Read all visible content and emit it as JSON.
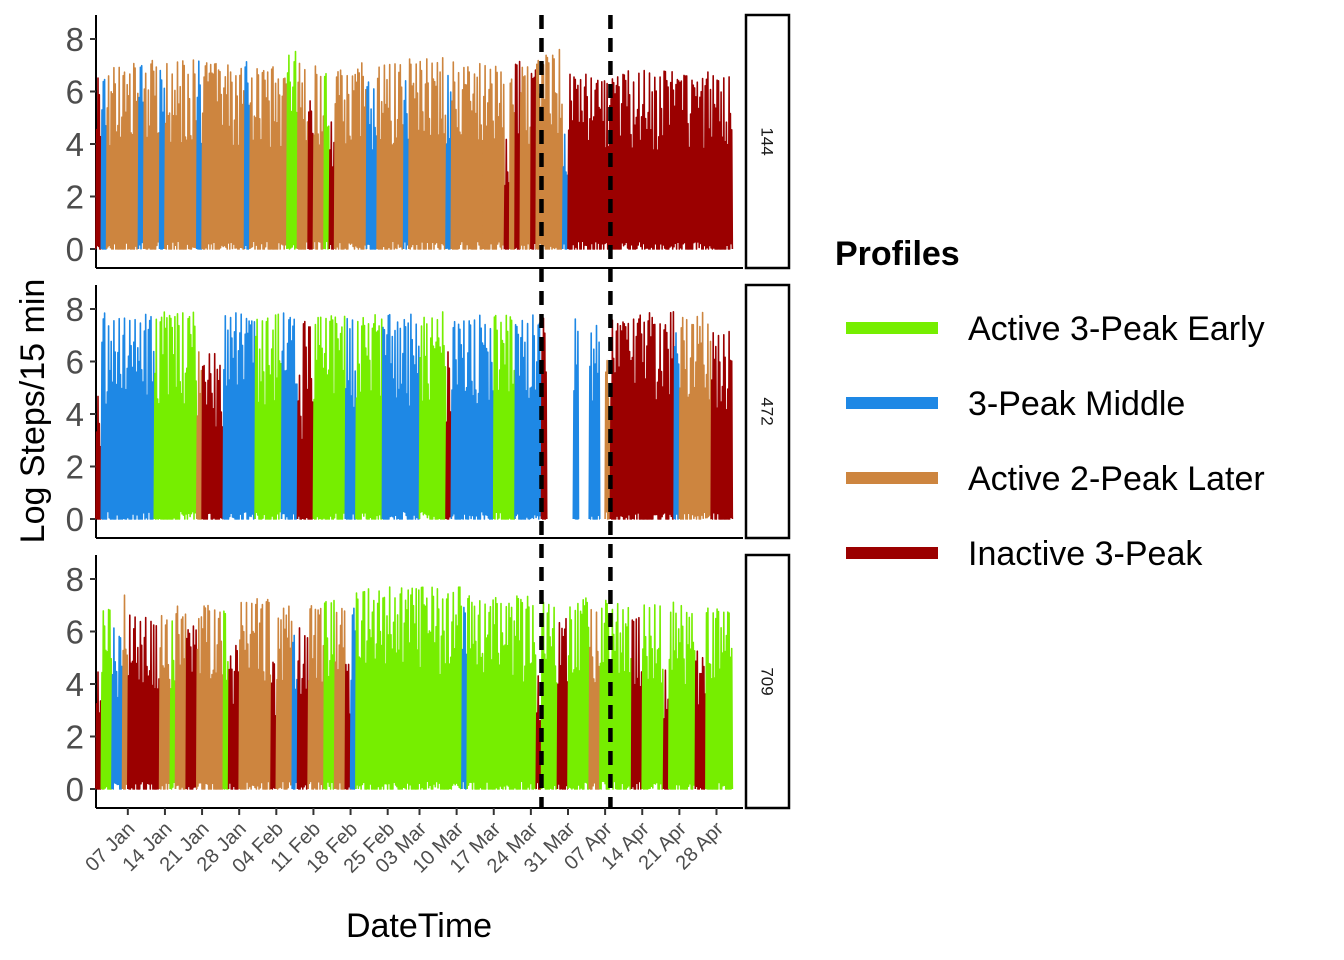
{
  "chart_data": {
    "type": "line",
    "xlabel": "DateTime",
    "ylabel": "Log Steps/15 min",
    "ylim": [
      0,
      8
    ],
    "y_ticks": [
      "0",
      "2",
      "4",
      "6",
      "8"
    ],
    "x_range": [
      "2025-01-01",
      "2025-05-03"
    ],
    "x_ticks": [
      {
        "date": "2025-01-07",
        "label": "07 Jan"
      },
      {
        "date": "2025-01-14",
        "label": "14 Jan"
      },
      {
        "date": "2025-01-21",
        "label": "21 Jan"
      },
      {
        "date": "2025-01-28",
        "label": "28 Jan"
      },
      {
        "date": "2025-02-04",
        "label": "04 Feb"
      },
      {
        "date": "2025-02-11",
        "label": "11 Feb"
      },
      {
        "date": "2025-02-18",
        "label": "18 Feb"
      },
      {
        "date": "2025-02-25",
        "label": "25 Feb"
      },
      {
        "date": "2025-03-03",
        "label": "03 Mar"
      },
      {
        "date": "2025-03-10",
        "label": "10 Mar"
      },
      {
        "date": "2025-03-17",
        "label": "17 Mar"
      },
      {
        "date": "2025-03-24",
        "label": "24 Mar"
      },
      {
        "date": "2025-03-31",
        "label": "31 Mar"
      },
      {
        "date": "2025-04-07",
        "label": "07 Apr"
      },
      {
        "date": "2025-04-14",
        "label": "14 Apr"
      },
      {
        "date": "2025-04-21",
        "label": "21 Apr"
      },
      {
        "date": "2025-04-28",
        "label": "28 Apr"
      }
    ],
    "vlines": [
      "2025-03-26",
      "2025-04-08"
    ],
    "legend": {
      "title": "Profiles",
      "position": "right",
      "entries": [
        {
          "label": "Active 3-Peak Early",
          "color": "#76EE00"
        },
        {
          "label": "3-Peak Middle",
          "color": "#1E88E5"
        },
        {
          "label": "Active 2-Peak Later",
          "color": "#CD853F"
        },
        {
          "label": "Inactive 3-Peak",
          "color": "#9B0000"
        }
      ]
    },
    "grid": false,
    "panels": [
      {
        "strip_label": "144",
        "segments": [
          {
            "start": "2025-01-01",
            "end": "2025-01-02",
            "profile": "Inactive 3-Peak",
            "peak": 6.9
          },
          {
            "start": "2025-01-02",
            "end": "2025-01-03",
            "profile": "3-Peak Middle",
            "peak": 6.8
          },
          {
            "start": "2025-01-03",
            "end": "2025-01-09",
            "profile": "Active 2-Peak Later",
            "peak": 7.1
          },
          {
            "start": "2025-01-09",
            "end": "2025-01-10",
            "profile": "3-Peak Middle",
            "peak": 7.0
          },
          {
            "start": "2025-01-10",
            "end": "2025-01-13",
            "profile": "Active 2-Peak Later",
            "peak": 7.2
          },
          {
            "start": "2025-01-13",
            "end": "2025-01-14",
            "profile": "3-Peak Middle",
            "peak": 6.9
          },
          {
            "start": "2025-01-14",
            "end": "2025-01-20",
            "profile": "Active 2-Peak Later",
            "peak": 7.2
          },
          {
            "start": "2025-01-20",
            "end": "2025-01-21",
            "profile": "3-Peak Middle",
            "peak": 7.3
          },
          {
            "start": "2025-01-21",
            "end": "2025-01-29",
            "profile": "Active 2-Peak Later",
            "peak": 7.1
          },
          {
            "start": "2025-01-29",
            "end": "2025-01-30",
            "profile": "3-Peak Middle",
            "peak": 7.2
          },
          {
            "start": "2025-01-30",
            "end": "2025-02-06",
            "profile": "Active 2-Peak Later",
            "peak": 7.0
          },
          {
            "start": "2025-02-06",
            "end": "2025-02-08",
            "profile": "Active 3-Peak Early",
            "peak": 7.6
          },
          {
            "start": "2025-02-08",
            "end": "2025-02-10",
            "profile": "Active 2-Peak Later",
            "peak": 7.3
          },
          {
            "start": "2025-02-10",
            "end": "2025-02-11",
            "profile": "Inactive 3-Peak",
            "peak": 6.0
          },
          {
            "start": "2025-02-11",
            "end": "2025-02-13",
            "profile": "Active 2-Peak Later",
            "peak": 7.1
          },
          {
            "start": "2025-02-13",
            "end": "2025-02-14",
            "profile": "Active 3-Peak Early",
            "peak": 7.0
          },
          {
            "start": "2025-02-14",
            "end": "2025-02-15",
            "profile": "Inactive 3-Peak",
            "peak": 5.0
          },
          {
            "start": "2025-02-15",
            "end": "2025-02-21",
            "profile": "Active 2-Peak Later",
            "peak": 7.1
          },
          {
            "start": "2025-02-21",
            "end": "2025-02-23",
            "profile": "3-Peak Middle",
            "peak": 6.6
          },
          {
            "start": "2025-02-23",
            "end": "2025-02-28",
            "profile": "Active 2-Peak Later",
            "peak": 7.1
          },
          {
            "start": "2025-02-28",
            "end": "2025-03-01",
            "profile": "3-Peak Middle",
            "peak": 6.5
          },
          {
            "start": "2025-03-01",
            "end": "2025-03-08",
            "profile": "Active 2-Peak Later",
            "peak": 7.3
          },
          {
            "start": "2025-03-08",
            "end": "2025-03-09",
            "profile": "3-Peak Middle",
            "peak": 7.0
          },
          {
            "start": "2025-03-09",
            "end": "2025-03-15",
            "profile": "Active 2-Peak Later",
            "peak": 7.2
          },
          {
            "start": "2025-03-15",
            "end": "2025-03-19",
            "profile": "Active 2-Peak Later",
            "peak": 7.0
          },
          {
            "start": "2025-03-19",
            "end": "2025-03-20",
            "profile": "Inactive 3-Peak",
            "peak": 4.2
          },
          {
            "start": "2025-03-20",
            "end": "2025-03-21",
            "profile": "Active 2-Peak Later",
            "peak": 7.0
          },
          {
            "start": "2025-03-21",
            "end": "2025-03-22",
            "profile": "Inactive 3-Peak",
            "peak": 7.3
          },
          {
            "start": "2025-03-22",
            "end": "2025-03-24",
            "profile": "Active 2-Peak Later",
            "peak": 7.2
          },
          {
            "start": "2025-03-24",
            "end": "2025-03-25",
            "profile": "Inactive 3-Peak",
            "peak": 6.9
          },
          {
            "start": "2025-03-25",
            "end": "2025-03-30",
            "profile": "Active 2-Peak Later",
            "peak": 7.6
          },
          {
            "start": "2025-03-30",
            "end": "2025-03-31",
            "profile": "3-Peak Middle",
            "peak": 4.7
          },
          {
            "start": "2025-03-31",
            "end": "2025-05-01",
            "profile": "Inactive 3-Peak",
            "peak": 6.8
          }
        ]
      },
      {
        "strip_label": "472",
        "segments": [
          {
            "start": "2025-01-01",
            "end": "2025-01-02",
            "profile": "Inactive 3-Peak",
            "peak": 4.8
          },
          {
            "start": "2025-01-02",
            "end": "2025-01-12",
            "profile": "3-Peak Middle",
            "peak": 7.9
          },
          {
            "start": "2025-01-12",
            "end": "2025-01-20",
            "profile": "Active 3-Peak Early",
            "peak": 7.9
          },
          {
            "start": "2025-01-20",
            "end": "2025-01-21",
            "profile": "Active 2-Peak Later",
            "peak": 6.9
          },
          {
            "start": "2025-01-21",
            "end": "2025-01-25",
            "profile": "Inactive 3-Peak",
            "peak": 6.3
          },
          {
            "start": "2025-01-25",
            "end": "2025-01-31",
            "profile": "3-Peak Middle",
            "peak": 7.9
          },
          {
            "start": "2025-01-31",
            "end": "2025-02-05",
            "profile": "Active 3-Peak Early",
            "peak": 7.8
          },
          {
            "start": "2025-02-05",
            "end": "2025-02-08",
            "profile": "3-Peak Middle",
            "peak": 7.9
          },
          {
            "start": "2025-02-08",
            "end": "2025-02-09",
            "profile": "Inactive 3-Peak",
            "peak": 5.5
          },
          {
            "start": "2025-02-09",
            "end": "2025-02-11",
            "profile": "Inactive 3-Peak",
            "peak": 7.9
          },
          {
            "start": "2025-02-11",
            "end": "2025-02-17",
            "profile": "Active 3-Peak Early",
            "peak": 7.8
          },
          {
            "start": "2025-02-17",
            "end": "2025-02-19",
            "profile": "3-Peak Middle",
            "peak": 7.7
          },
          {
            "start": "2025-02-19",
            "end": "2025-02-24",
            "profile": "Active 3-Peak Early",
            "peak": 7.8
          },
          {
            "start": "2025-02-24",
            "end": "2025-03-03",
            "profile": "3-Peak Middle",
            "peak": 7.8
          },
          {
            "start": "2025-03-03",
            "end": "2025-03-08",
            "profile": "Active 3-Peak Early",
            "peak": 7.9
          },
          {
            "start": "2025-03-08",
            "end": "2025-03-09",
            "profile": "Inactive 3-Peak",
            "peak": 6.4
          },
          {
            "start": "2025-03-09",
            "end": "2025-03-17",
            "profile": "3-Peak Middle",
            "peak": 7.8
          },
          {
            "start": "2025-03-17",
            "end": "2025-03-21",
            "profile": "Active 3-Peak Early",
            "peak": 7.9
          },
          {
            "start": "2025-03-21",
            "end": "2025-03-26",
            "profile": "3-Peak Middle",
            "peak": 7.8
          },
          {
            "start": "2025-03-26",
            "end": "2025-03-27",
            "profile": "Inactive 3-Peak",
            "peak": 7.9
          },
          {
            "start": "2025-04-01",
            "end": "2025-04-02",
            "profile": "3-Peak Middle",
            "peak": 7.8
          },
          {
            "start": "2025-04-04",
            "end": "2025-04-06",
            "profile": "3-Peak Middle",
            "peak": 7.4
          },
          {
            "start": "2025-04-07",
            "end": "2025-04-08",
            "profile": "Active 2-Peak Later",
            "peak": 6.5
          },
          {
            "start": "2025-04-08",
            "end": "2025-04-20",
            "profile": "Inactive 3-Peak",
            "peak": 7.9
          },
          {
            "start": "2025-04-20",
            "end": "2025-04-21",
            "profile": "3-Peak Middle",
            "peak": 7.6
          },
          {
            "start": "2025-04-21",
            "end": "2025-04-27",
            "profile": "Active 2-Peak Later",
            "peak": 7.9
          },
          {
            "start": "2025-04-27",
            "end": "2025-05-01",
            "profile": "Inactive 3-Peak",
            "peak": 7.4
          }
        ]
      },
      {
        "strip_label": "709",
        "segments": [
          {
            "start": "2025-01-01",
            "end": "2025-01-02",
            "profile": "Inactive 3-Peak",
            "peak": 4.5
          },
          {
            "start": "2025-01-02",
            "end": "2025-01-04",
            "profile": "Active 3-Peak Early",
            "peak": 7.0
          },
          {
            "start": "2025-01-04",
            "end": "2025-01-06",
            "profile": "3-Peak Middle",
            "peak": 6.3
          },
          {
            "start": "2025-01-06",
            "end": "2025-01-07",
            "profile": "Active 2-Peak Later",
            "peak": 7.4
          },
          {
            "start": "2025-01-07",
            "end": "2025-01-13",
            "profile": "Inactive 3-Peak",
            "peak": 6.7
          },
          {
            "start": "2025-01-13",
            "end": "2025-01-15",
            "profile": "Active 2-Peak Later",
            "peak": 6.8
          },
          {
            "start": "2025-01-15",
            "end": "2025-01-16",
            "profile": "Active 3-Peak Early",
            "peak": 6.9
          },
          {
            "start": "2025-01-16",
            "end": "2025-01-18",
            "profile": "Active 2-Peak Later",
            "peak": 7.0
          },
          {
            "start": "2025-01-18",
            "end": "2025-01-20",
            "profile": "Inactive 3-Peak",
            "peak": 6.5
          },
          {
            "start": "2025-01-20",
            "end": "2025-01-25",
            "profile": "Active 2-Peak Later",
            "peak": 7.0
          },
          {
            "start": "2025-01-25",
            "end": "2025-01-26",
            "profile": "Active 3-Peak Early",
            "peak": 7.2
          },
          {
            "start": "2025-01-26",
            "end": "2025-01-28",
            "profile": "Inactive 3-Peak",
            "peak": 5.5
          },
          {
            "start": "2025-01-28",
            "end": "2025-02-03",
            "profile": "Active 2-Peak Later",
            "peak": 7.3
          },
          {
            "start": "2025-02-03",
            "end": "2025-02-04",
            "profile": "Inactive 3-Peak",
            "peak": 5.0
          },
          {
            "start": "2025-02-04",
            "end": "2025-02-07",
            "profile": "Active 2-Peak Later",
            "peak": 7.0
          },
          {
            "start": "2025-02-07",
            "end": "2025-02-08",
            "profile": "3-Peak Middle",
            "peak": 6.2
          },
          {
            "start": "2025-02-08",
            "end": "2025-02-10",
            "profile": "Inactive 3-Peak",
            "peak": 6.3
          },
          {
            "start": "2025-02-10",
            "end": "2025-02-13",
            "profile": "Active 2-Peak Later",
            "peak": 7.0
          },
          {
            "start": "2025-02-13",
            "end": "2025-02-15",
            "profile": "Active 3-Peak Early",
            "peak": 7.2
          },
          {
            "start": "2025-02-15",
            "end": "2025-02-17",
            "profile": "Active 2-Peak Later",
            "peak": 7.1
          },
          {
            "start": "2025-02-17",
            "end": "2025-02-18",
            "profile": "Inactive 3-Peak",
            "peak": 4.8
          },
          {
            "start": "2025-02-18",
            "end": "2025-02-19",
            "profile": "3-Peak Middle",
            "peak": 7.2
          },
          {
            "start": "2025-02-19",
            "end": "2025-03-11",
            "profile": "Active 3-Peak Early",
            "peak": 7.8
          },
          {
            "start": "2025-03-11",
            "end": "2025-03-12",
            "profile": "3-Peak Middle",
            "peak": 7.0
          },
          {
            "start": "2025-03-12",
            "end": "2025-03-25",
            "profile": "Active 3-Peak Early",
            "peak": 7.4
          },
          {
            "start": "2025-03-25",
            "end": "2025-03-26",
            "profile": "Inactive 3-Peak",
            "peak": 4.5
          },
          {
            "start": "2025-03-26",
            "end": "2025-03-29",
            "profile": "Active 3-Peak Early",
            "peak": 7.3
          },
          {
            "start": "2025-03-29",
            "end": "2025-03-31",
            "profile": "Inactive 3-Peak",
            "peak": 6.5
          },
          {
            "start": "2025-03-31",
            "end": "2025-04-04",
            "profile": "Active 3-Peak Early",
            "peak": 7.3
          },
          {
            "start": "2025-04-04",
            "end": "2025-04-06",
            "profile": "Active 2-Peak Later",
            "peak": 7.2
          },
          {
            "start": "2025-04-06",
            "end": "2025-04-12",
            "profile": "Active 3-Peak Early",
            "peak": 7.2
          },
          {
            "start": "2025-04-12",
            "end": "2025-04-14",
            "profile": "Inactive 3-Peak",
            "peak": 6.6
          },
          {
            "start": "2025-04-14",
            "end": "2025-04-18",
            "profile": "Active 3-Peak Early",
            "peak": 7.3
          },
          {
            "start": "2025-04-18",
            "end": "2025-04-19",
            "profile": "Inactive 3-Peak",
            "peak": 4.6
          },
          {
            "start": "2025-04-19",
            "end": "2025-04-24",
            "profile": "Active 3-Peak Early",
            "peak": 7.2
          },
          {
            "start": "2025-04-24",
            "end": "2025-04-26",
            "profile": "Inactive 3-Peak",
            "peak": 5.3
          },
          {
            "start": "2025-04-26",
            "end": "2025-05-01",
            "profile": "Active 3-Peak Early",
            "peak": 7.2
          }
        ]
      }
    ]
  }
}
